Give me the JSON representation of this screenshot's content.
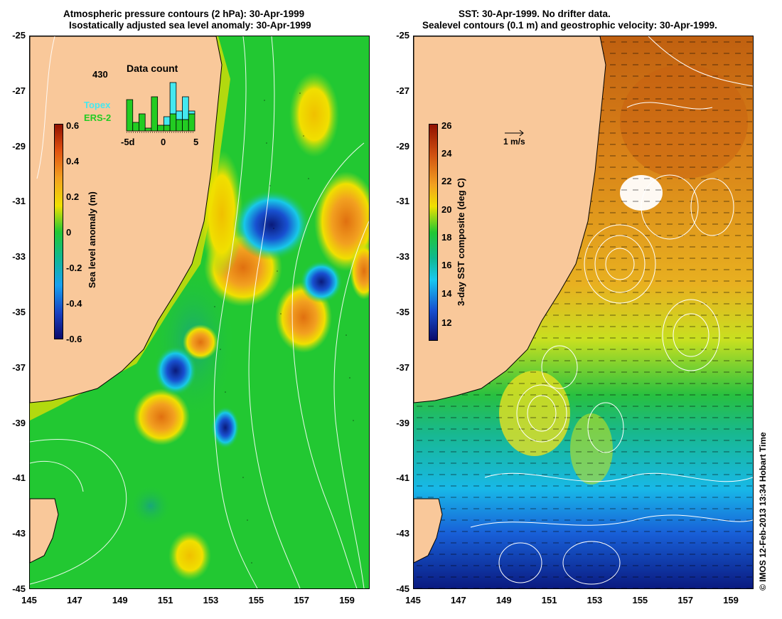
{
  "left_panel": {
    "title_line1": "Atmospheric pressure contours (2 hPa): 30-Apr-1999",
    "title_line2": "Isostatically adjusted sea level anomaly: 30-Apr-1999",
    "colorbar_label": "Sea level anomaly (m)",
    "colorbar_ticks": [
      "0.6",
      "0.4",
      "0.2",
      "0",
      "-0.2",
      "-0.4",
      "-0.6"
    ],
    "data_count": {
      "title": "Data count",
      "max_label": "430",
      "legend_topex": "Topex",
      "legend_ers2": "ERS-2",
      "x_ticks": [
        "-5d",
        "0",
        "5"
      ],
      "ers2_values": [
        0.55,
        0.15,
        0.3,
        0.05,
        0.6,
        0.1,
        0.1,
        0.3,
        0.2,
        0.2,
        0.3
      ],
      "topex_values": [
        0,
        0,
        0,
        0,
        0,
        0,
        0.15,
        0.55,
        0.15,
        0.4,
        0.05
      ],
      "colors": {
        "topex": "#44e8f0",
        "ers2": "#22cc22"
      }
    }
  },
  "right_panel": {
    "title_line1": "SST: 30-Apr-1999. No drifter data.",
    "title_line2": "Sealevel contours (0.1 m) and geostrophic velocity: 30-Apr-1999.",
    "colorbar_label": "3-day SST composite (deg C)",
    "colorbar_ticks": [
      "26",
      "24",
      "22",
      "20",
      "18",
      "16",
      "14",
      "12"
    ],
    "velocity_scale_label": "1 m/s"
  },
  "axes": {
    "y_ticks": [
      "-25",
      "-27",
      "-29",
      "-31",
      "-33",
      "-35",
      "-37",
      "-39",
      "-41",
      "-43",
      "-45"
    ],
    "x_ticks": [
      "145",
      "147",
      "149",
      "151",
      "153",
      "155",
      "157",
      "159"
    ],
    "lat_range": [
      -45,
      -25
    ],
    "lon_range": [
      145,
      160
    ]
  },
  "credit": "© IMOS 12-Feb-2013 13:34 Hobart Time",
  "colors": {
    "land": "#f9c89a",
    "sea_green": "#22c832",
    "yellow": "#f0e000",
    "orange": "#f29a10",
    "dark_blue": "#0a1a7a",
    "cyan": "#18c8e8"
  }
}
